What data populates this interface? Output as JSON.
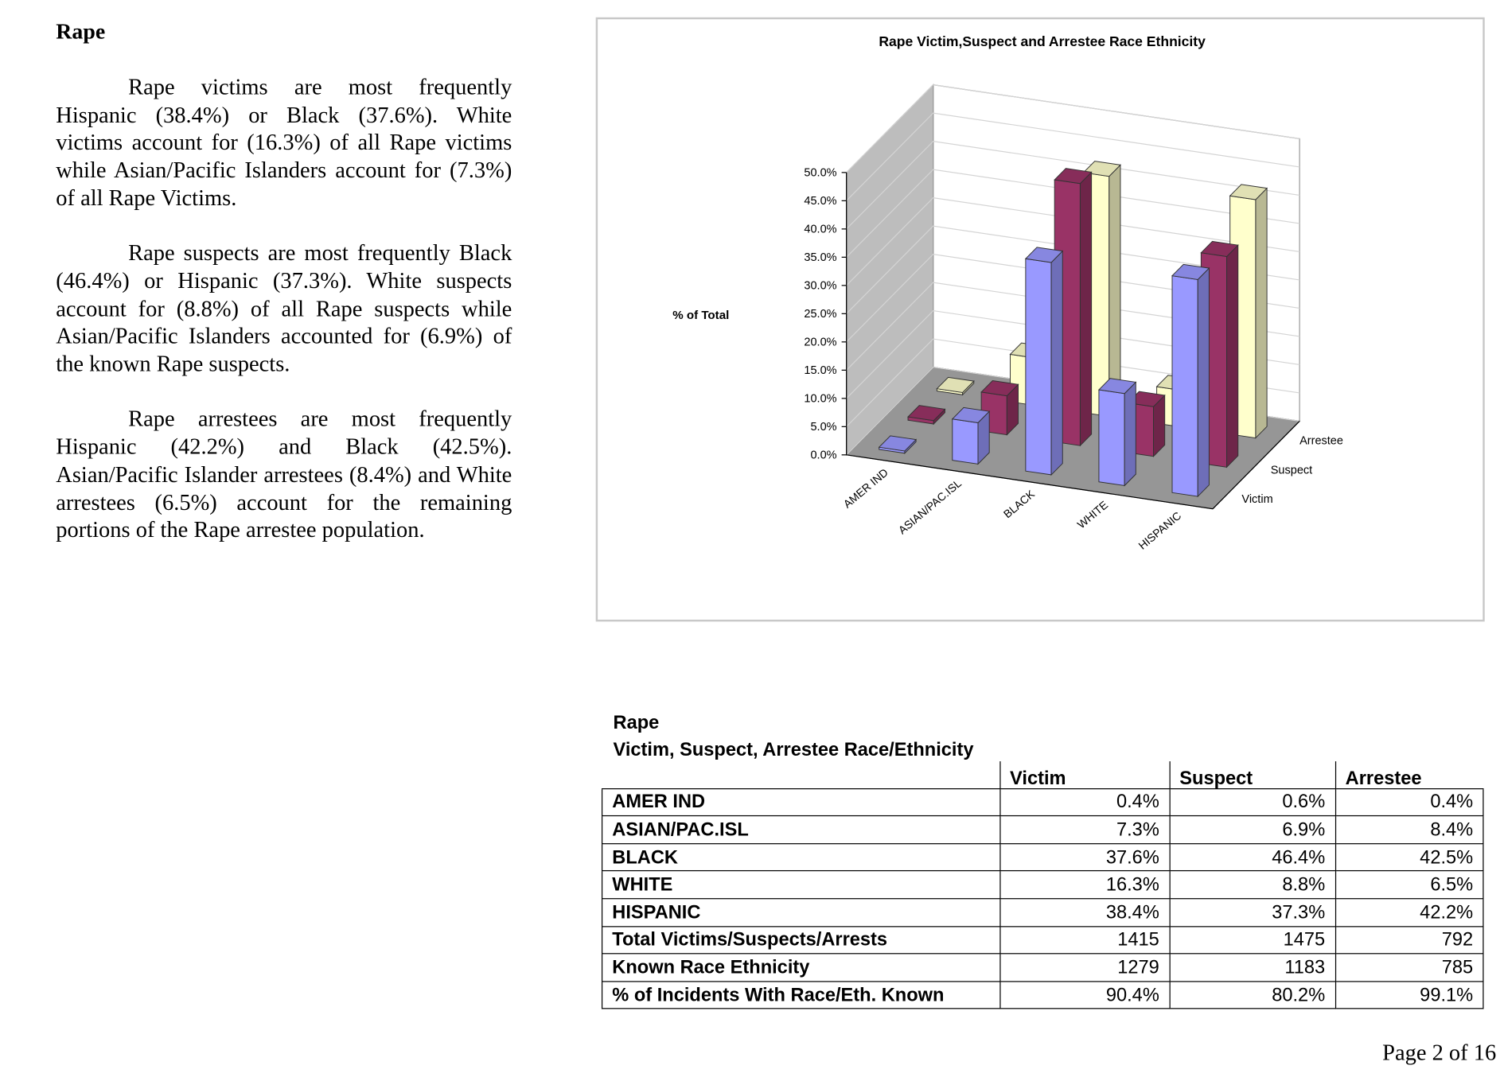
{
  "heading": "Rape",
  "paragraphs": [
    "Rape victims are most frequently Hispanic (38.4%) or Black (37.6%). White victims account for (16.3%) of all Rape victims while Asian/Pacific Islanders account for (7.3%) of all Rape Victims.",
    "Rape suspects are most frequently Black (46.4%) or Hispanic (37.3%). White suspects account for (8.8%) of all Rape suspects while Asian/Pacific Islanders accounted for (6.9%) of the known Rape suspects.",
    "Rape arrestees are most frequently Hispanic (42.2%) and Black (42.5%). Asian/Pacific Islander arrestees (8.4%) and White arrestees (6.5%) account for the remaining portions of the Rape arrestee population."
  ],
  "chart_data": {
    "type": "bar3d",
    "title": "Rape Victim,Suspect and Arrestee Race Ethnicity",
    "ylabel": "% of Total",
    "categories": [
      "AMER IND",
      "ASIAN/PAC.ISL",
      "BLACK",
      "WHITE",
      "HISPANIC"
    ],
    "series": [
      {
        "name": "Victim",
        "color": "#9999ff",
        "values": [
          0.4,
          7.3,
          37.6,
          16.3,
          38.4
        ]
      },
      {
        "name": "Suspect",
        "color": "#993366",
        "values": [
          0.6,
          6.9,
          46.4,
          8.8,
          37.3
        ]
      },
      {
        "name": "Arrestee",
        "color": "#ffffcc",
        "values": [
          0.4,
          8.4,
          42.5,
          6.5,
          42.2
        ]
      }
    ],
    "ylim": [
      0,
      50
    ],
    "yticks": [
      {
        "value": 0,
        "label": "0.0%"
      },
      {
        "value": 5,
        "label": "5.0%"
      },
      {
        "value": 10,
        "label": "10.0%"
      },
      {
        "value": 15,
        "label": "15.0%"
      },
      {
        "value": 20,
        "label": "20.0%"
      },
      {
        "value": 25,
        "label": "25.0%"
      },
      {
        "value": 30,
        "label": "30.0%"
      },
      {
        "value": 35,
        "label": "35.0%"
      },
      {
        "value": 40,
        "label": "40.0%"
      },
      {
        "value": 45,
        "label": "45.0%"
      },
      {
        "value": 50,
        "label": "50.0%"
      }
    ],
    "grid": true
  },
  "table": {
    "title": [
      "Rape",
      "Victim, Suspect, Arrestee Race/Ethnicity"
    ],
    "columns": [
      "Victim",
      "Suspect",
      "Arrestee"
    ],
    "rows": [
      [
        "AMER IND",
        "0.4%",
        "0.6%",
        "0.4%"
      ],
      [
        "ASIAN/PAC.ISL",
        "7.3%",
        "6.9%",
        "8.4%"
      ],
      [
        "BLACK",
        "37.6%",
        "46.4%",
        "42.5%"
      ],
      [
        "WHITE",
        "16.3%",
        "8.8%",
        "6.5%"
      ],
      [
        "HISPANIC",
        "38.4%",
        "37.3%",
        "42.2%"
      ],
      [
        "Total Victims/Suspects/Arrests",
        "1415",
        "1475",
        "792"
      ],
      [
        "Known Race Ethnicity",
        "1279",
        "1183",
        "785"
      ],
      [
        "% of Incidents With Race/Eth. Known",
        "90.4%",
        "80.2%",
        "99.1%"
      ]
    ]
  },
  "footer": "Page 2 of 16"
}
